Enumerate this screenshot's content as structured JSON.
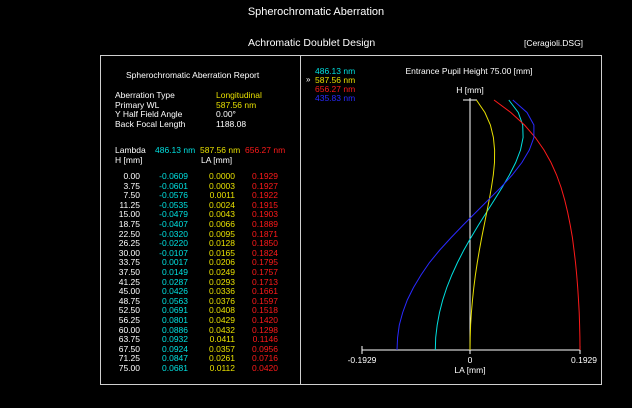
{
  "window": {
    "title": "Spherochromatic Aberration",
    "subtitle": "Achromatic Doublet Design",
    "file_tag": "[Ceragioli.DSG]"
  },
  "report": {
    "heading": "Spherochromatic Aberration Report",
    "labels": {
      "aberration_type": "Aberration Type",
      "primary_wl": "Primary WL",
      "y_half_field_angle": "Y Half Field Angle",
      "back_focal_length": "Back Focal Length"
    },
    "values": {
      "aberration_type": "Longitudinal",
      "primary_wl": "587.56 nm",
      "y_half_field_angle": "0.00°",
      "back_focal_length": "1188.08"
    },
    "table": {
      "lambda_label": "Lambda",
      "h_label": "H [mm]",
      "la_label": "LA [mm]",
      "wl_headers": [
        "486.13 nm",
        "587.56 nm",
        "656.27 nm"
      ],
      "h": [
        "0.00",
        "3.75",
        "7.50",
        "11.25",
        "15.00",
        "18.75",
        "22.50",
        "26.25",
        "30.00",
        "33.75",
        "37.50",
        "41.25",
        "45.00",
        "48.75",
        "52.50",
        "56.25",
        "60.00",
        "63.75",
        "67.50",
        "71.25",
        "75.00"
      ],
      "la_486": [
        "-0.0609",
        "-0.0601",
        "-0.0576",
        "-0.0535",
        "-0.0479",
        "-0.0407",
        "-0.0320",
        "-0.0220",
        "-0.0107",
        "0.0017",
        "0.0149",
        "0.0287",
        "0.0426",
        "0.0563",
        "0.0691",
        "0.0801",
        "0.0886",
        "0.0932",
        "0.0924",
        "0.0847",
        "0.0681"
      ],
      "la_587": [
        "0.0000",
        "0.0003",
        "0.0011",
        "0.0024",
        "0.0043",
        "0.0066",
        "0.0095",
        "0.0128",
        "0.0165",
        "0.0206",
        "0.0249",
        "0.0293",
        "0.0336",
        "0.0376",
        "0.0408",
        "0.0429",
        "0.0432",
        "0.0411",
        "0.0357",
        "0.0261",
        "0.0112"
      ],
      "la_656": [
        "0.1929",
        "0.1927",
        "0.1922",
        "0.1915",
        "0.1903",
        "0.1889",
        "0.1871",
        "0.1850",
        "0.1824",
        "0.1795",
        "0.1757",
        "0.1713",
        "0.1661",
        "0.1597",
        "0.1518",
        "0.1420",
        "0.1298",
        "0.1146",
        "0.0956",
        "0.0716",
        "0.0420"
      ]
    }
  },
  "colors": {
    "c486": "#00e0e0",
    "c587": "#e8e000",
    "c656": "#ff1a1a",
    "c435": "#2a2aff",
    "frame": "#cfcfcf"
  },
  "chart_data": {
    "type": "line",
    "title": "Entrance Pupil Height 75.00 [mm]",
    "ylabel": "H [mm]",
    "xlabel": "LA [mm]",
    "xlim": [
      -0.1929,
      0.1929
    ],
    "ylim": [
      0,
      75
    ],
    "x_tick_labels": [
      "-0.1929",
      "0",
      "0.1929"
    ],
    "legend_placement": "top-left",
    "legend_marker": "»",
    "y": [
      0,
      3.75,
      7.5,
      11.25,
      15,
      18.75,
      22.5,
      26.25,
      30,
      33.75,
      37.5,
      41.25,
      45,
      48.75,
      52.5,
      56.25,
      60,
      63.75,
      67.5,
      71.25,
      75
    ],
    "series": [
      {
        "name": "486.13 nm",
        "color": "#00e0e0",
        "values": [
          -0.0609,
          -0.0601,
          -0.0576,
          -0.0535,
          -0.0479,
          -0.0407,
          -0.032,
          -0.022,
          -0.0107,
          0.0017,
          0.0149,
          0.0287,
          0.0426,
          0.0563,
          0.0691,
          0.0801,
          0.0886,
          0.0932,
          0.0924,
          0.0847,
          0.0681
        ]
      },
      {
        "name": "587.56 nm",
        "color": "#e8e000",
        "values": [
          0,
          0.0003,
          0.0011,
          0.0024,
          0.0043,
          0.0066,
          0.0095,
          0.0128,
          0.0165,
          0.0206,
          0.0249,
          0.0293,
          0.0336,
          0.0376,
          0.0408,
          0.0429,
          0.0432,
          0.0411,
          0.0357,
          0.0261,
          0.0112
        ]
      },
      {
        "name": "656.27 nm",
        "color": "#ff1a1a",
        "values": [
          0.1929,
          0.1927,
          0.1922,
          0.1915,
          0.1903,
          0.1889,
          0.1871,
          0.185,
          0.1824,
          0.1795,
          0.1757,
          0.1713,
          0.1661,
          0.1597,
          0.1518,
          0.142,
          0.1298,
          0.1146,
          0.0956,
          0.0716,
          0.042
        ]
      },
      {
        "name": "435.83 nm",
        "color": "#2a2aff",
        "values": [
          -0.128,
          -0.127,
          -0.124,
          -0.118,
          -0.11,
          -0.099,
          -0.086,
          -0.071,
          -0.053,
          -0.033,
          -0.012,
          0.01,
          0.032,
          0.054,
          0.074,
          0.091,
          0.104,
          0.112,
          0.112,
          0.1,
          0.075
        ]
      }
    ]
  }
}
